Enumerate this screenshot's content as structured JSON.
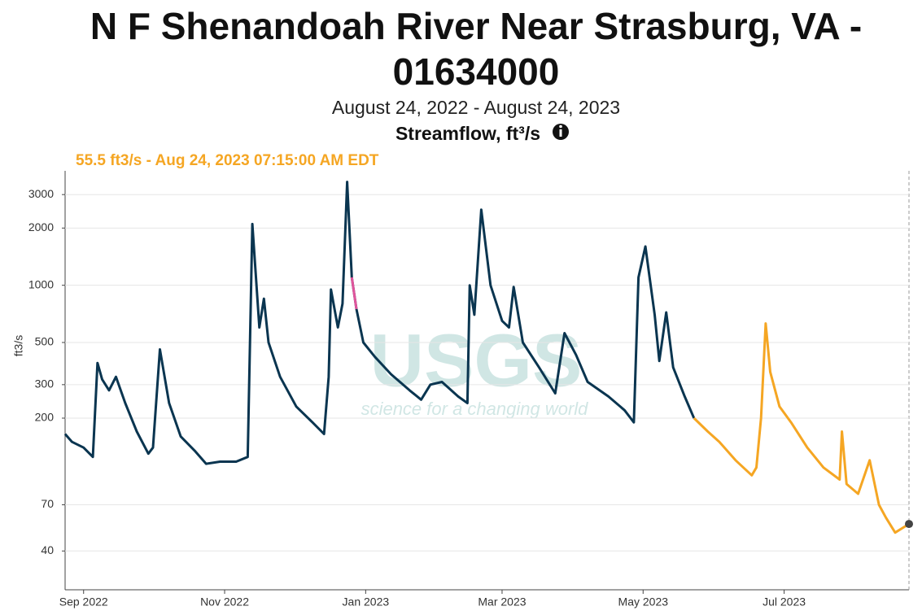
{
  "chart_data": {
    "type": "line",
    "title": [
      "N F Shenandoah River Near Strasburg, VA -",
      "01634000"
    ],
    "subtitle": "August 24, 2022 - August 24, 2023",
    "axis_title": "Streamflow, ft³/s",
    "annotation": "55.5 ft3/s - Aug 24, 2023 07:15:00 AM EDT",
    "y_label": "ft3/s",
    "watermark": {
      "logo": "USGS",
      "tagline": "science for a changing world"
    },
    "y_log": true,
    "grid": true,
    "xlim": [
      "2022-08-24",
      "2023-08-24"
    ],
    "ylim": [
      25,
      4000
    ],
    "yticks": [
      40,
      70,
      200,
      300,
      500,
      1000,
      2000,
      3000
    ],
    "xticks": [
      {
        "value": "2022-09-01",
        "label": "Sep 2022"
      },
      {
        "value": "2022-11-01",
        "label": "Nov 2022"
      },
      {
        "value": "2023-01-01",
        "label": "Jan 2023"
      },
      {
        "value": "2023-03-01",
        "label": "Mar 2023"
      },
      {
        "value": "2023-05-01",
        "label": "May 2023"
      },
      {
        "value": "2023-07-01",
        "label": "Jul 2023"
      }
    ],
    "series": [
      {
        "color": "#0a3550",
        "x": [
          "2022-08-24",
          "2022-08-27",
          "2022-09-01",
          "2022-09-05",
          "2022-09-07",
          "2022-09-09",
          "2022-09-12",
          "2022-09-15",
          "2022-09-19",
          "2022-09-24",
          "2022-09-29",
          "2022-10-01",
          "2022-10-04",
          "2022-10-08",
          "2022-10-13",
          "2022-10-19",
          "2022-10-24",
          "2022-10-30",
          "2022-11-06",
          "2022-11-11",
          "2022-11-13",
          "2022-11-16",
          "2022-11-18",
          "2022-11-20",
          "2022-11-25",
          "2022-12-02",
          "2022-12-09",
          "2022-12-14",
          "2022-12-16",
          "2022-12-17",
          "2022-12-20",
          "2022-12-22",
          "2022-12-24",
          "2022-12-26",
          "2022-12-28",
          "2022-12-31",
          "2023-01-05",
          "2023-01-12",
          "2023-01-20",
          "2023-01-25",
          "2023-01-29",
          "2023-02-03",
          "2023-02-10",
          "2023-02-14",
          "2023-02-15",
          "2023-02-17",
          "2023-02-20",
          "2023-02-24",
          "2023-03-01",
          "2023-03-04",
          "2023-03-06",
          "2023-03-10",
          "2023-03-17",
          "2023-03-24",
          "2023-03-28",
          "2023-04-02",
          "2023-04-07",
          "2023-04-16",
          "2023-04-23",
          "2023-04-27",
          "2023-04-29",
          "2023-05-02",
          "2023-05-06",
          "2023-05-08",
          "2023-05-11",
          "2023-05-14",
          "2023-05-19",
          "2023-05-23"
        ],
        "values": [
          165,
          150,
          140,
          125,
          390,
          320,
          280,
          330,
          240,
          170,
          130,
          140,
          460,
          240,
          160,
          135,
          115,
          118,
          118,
          125,
          2100,
          600,
          850,
          500,
          330,
          230,
          190,
          165,
          330,
          950,
          600,
          800,
          3500,
          1100,
          750,
          500,
          420,
          340,
          280,
          250,
          300,
          310,
          260,
          240,
          1000,
          700,
          2500,
          1000,
          650,
          600,
          980,
          500,
          370,
          270,
          560,
          430,
          310,
          260,
          220,
          190,
          1100,
          1600,
          700,
          400,
          720,
          370,
          260,
          200
        ]
      },
      {
        "color": "#f5a623",
        "x": [
          "2023-05-23",
          "2023-05-29",
          "2023-06-03",
          "2023-06-10",
          "2023-06-17",
          "2023-06-19",
          "2023-06-21",
          "2023-06-23",
          "2023-06-25",
          "2023-06-29",
          "2023-07-04",
          "2023-07-11",
          "2023-07-18",
          "2023-07-25",
          "2023-07-26",
          "2023-07-28",
          "2023-08-02",
          "2023-08-07",
          "2023-08-11",
          "2023-08-14",
          "2023-08-18",
          "2023-08-24"
        ],
        "values": [
          200,
          170,
          150,
          120,
          100,
          110,
          200,
          630,
          350,
          230,
          190,
          140,
          110,
          95,
          170,
          90,
          80,
          120,
          70,
          60,
          50,
          55.5
        ]
      },
      {
        "color": "#e0559c",
        "x": [
          "2022-12-26",
          "2022-12-28"
        ],
        "values": [
          1100,
          750
        ]
      }
    ],
    "marker_color": "#444444"
  }
}
